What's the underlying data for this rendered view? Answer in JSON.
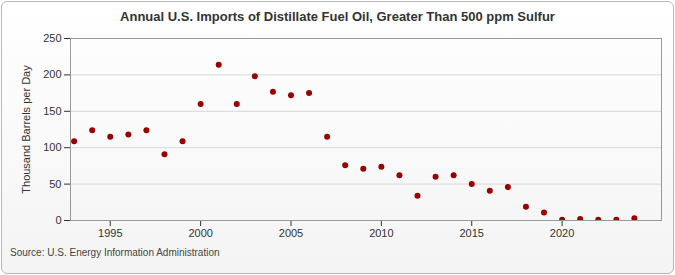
{
  "chart_data": {
    "type": "scatter",
    "title": "Annual U.S. Imports of Distillate Fuel Oil, Greater Than 500 ppm Sulfur",
    "y_label": "Thousand Barrels per Day",
    "source": "Source: U.S. Energy Information Administration",
    "x": [
      1993,
      1994,
      1995,
      1996,
      1997,
      1998,
      1999,
      2000,
      2001,
      2002,
      2003,
      2004,
      2005,
      2006,
      2007,
      2008,
      2009,
      2010,
      2011,
      2012,
      2013,
      2014,
      2015,
      2016,
      2017,
      2018,
      2019,
      2020,
      2021,
      2022,
      2023,
      2024
    ],
    "values": [
      109,
      124,
      115,
      118,
      124,
      91,
      109,
      160,
      214,
      160,
      198,
      177,
      172,
      175,
      115,
      76,
      71,
      74,
      62,
      34,
      60,
      62,
      50,
      41,
      46,
      19,
      11,
      1,
      2,
      1,
      1,
      3
    ],
    "color": "#990000",
    "marker": "circle",
    "xlim": [
      1992.8,
      2025.5
    ],
    "xticks": [
      1995,
      2000,
      2005,
      2010,
      2015,
      2020
    ],
    "ylim": [
      0,
      250
    ],
    "yticks": [
      0,
      50,
      100,
      150,
      200,
      250
    ],
    "grid": true
  }
}
